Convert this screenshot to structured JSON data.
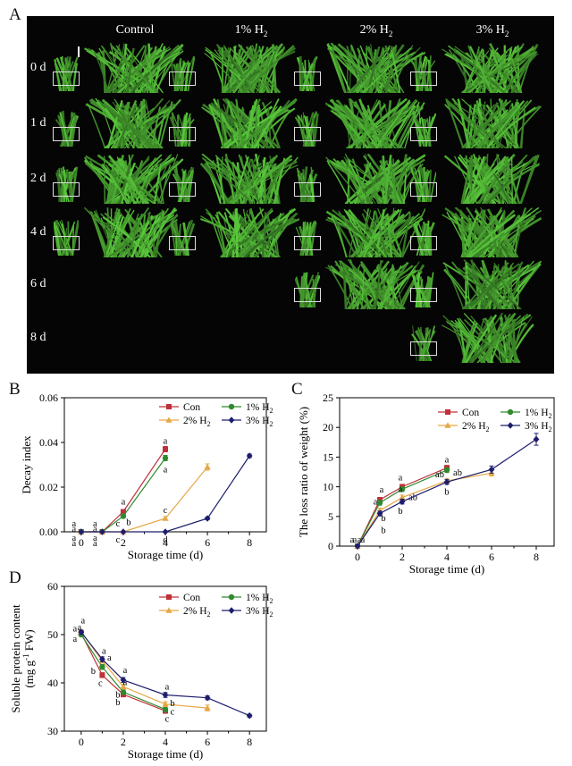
{
  "panels": {
    "a": {
      "letter": "A",
      "columns": [
        "Control",
        "1% H",
        "2% H",
        "3% H"
      ],
      "columns_sub": [
        "",
        "2",
        "2",
        "2"
      ],
      "rows": [
        "0 d",
        "1 d",
        "2 d",
        "4 d",
        "6 d",
        "8 d"
      ],
      "availability": [
        [
          1,
          1,
          1,
          1
        ],
        [
          1,
          1,
          1,
          1
        ],
        [
          1,
          1,
          1,
          1
        ],
        [
          1,
          1,
          1,
          1
        ],
        [
          0,
          0,
          1,
          1
        ],
        [
          0,
          0,
          0,
          1
        ]
      ]
    },
    "b": {
      "letter": "B"
    },
    "c": {
      "letter": "C"
    },
    "d": {
      "letter": "D"
    }
  },
  "legend_labels": [
    {
      "main": "Con",
      "sub": ""
    },
    {
      "main": "1% H",
      "sub": "2"
    },
    {
      "main": "2% H",
      "sub": "2"
    },
    {
      "main": "3% H",
      "sub": "2"
    }
  ],
  "colors": {
    "con": "#c0303a",
    "h1": "#2f8a2f",
    "h2": "#e6a744",
    "h3": "#1d1d6e"
  },
  "chart_data": [
    {
      "id": "b",
      "type": "line",
      "xlabel": "Storage time (d)",
      "ylabel": "Decay index",
      "xlim": [
        -0.8,
        8.8
      ],
      "ylim": [
        0,
        0.06
      ],
      "xticks": [
        0,
        2,
        4,
        6,
        8
      ],
      "yticks": [
        0.0,
        0.02,
        0.04,
        0.06
      ],
      "ytick_labels": [
        "0.00",
        "0.02",
        "0.04",
        "0.06"
      ],
      "series": [
        {
          "name": "Con",
          "x": [
            0,
            1,
            2,
            4
          ],
          "y": [
            0,
            0,
            0.009,
            0.037
          ],
          "err": [
            0,
            0,
            0.0008,
            0.0012
          ],
          "labels": [
            "a",
            "a",
            "a",
            "a"
          ]
        },
        {
          "name": "1% H2",
          "x": [
            0,
            1,
            2,
            4
          ],
          "y": [
            0,
            0,
            0.007,
            0.033
          ],
          "err": [
            0,
            0,
            0.0008,
            0.0012
          ],
          "labels": [
            "a",
            "a",
            "b",
            "a"
          ]
        },
        {
          "name": "2% H2",
          "x": [
            0,
            1,
            2,
            4,
            6
          ],
          "y": [
            0,
            0,
            0,
            0.006,
            0.029
          ],
          "err": [
            0,
            0,
            0,
            0.0008,
            0.0014
          ],
          "labels": [
            "a",
            "a",
            "c",
            "c",
            ""
          ]
        },
        {
          "name": "3% H2",
          "x": [
            0,
            1,
            2,
            4,
            6,
            8
          ],
          "y": [
            0,
            0,
            0,
            0,
            0.006,
            0.034
          ],
          "err": [
            0,
            0,
            0,
            0,
            0.0006,
            0.0008
          ],
          "labels": [
            "a",
            "a",
            "c",
            "d",
            "",
            ""
          ]
        }
      ]
    },
    {
      "id": "c",
      "type": "line",
      "xlabel": "Storage time (d)",
      "ylabel": "The loss ratio of weight (%)",
      "xlim": [
        -0.8,
        8.8
      ],
      "ylim": [
        0,
        25
      ],
      "xticks": [
        0,
        2,
        4,
        6,
        8
      ],
      "yticks": [
        0,
        5,
        10,
        15,
        20,
        25
      ],
      "ytick_labels": [
        "0",
        "5",
        "10",
        "15",
        "20",
        "25"
      ],
      "series": [
        {
          "name": "Con",
          "x": [
            0,
            1,
            2,
            4
          ],
          "y": [
            0,
            7.8,
            10.0,
            13.2
          ],
          "err": [
            0,
            0.4,
            0.4,
            0.4
          ],
          "labels": [
            "a",
            "a",
            "a",
            "a"
          ]
        },
        {
          "name": "1% H2",
          "x": [
            0,
            1,
            2,
            4
          ],
          "y": [
            0,
            7.3,
            9.6,
            12.8
          ],
          "err": [
            0,
            0.4,
            0.4,
            0.4
          ],
          "labels": [
            "a",
            "a",
            "a",
            "ab"
          ]
        },
        {
          "name": "2% H2",
          "x": [
            0,
            1,
            2,
            4,
            6
          ],
          "y": [
            0,
            6.0,
            8.2,
            11.0,
            12.3
          ],
          "err": [
            0,
            0.4,
            0.4,
            0.4,
            0.5
          ],
          "labels": [
            "a",
            "b",
            "ab",
            "ab",
            ""
          ]
        },
        {
          "name": "3% H2",
          "x": [
            0,
            1,
            2,
            4,
            6,
            8
          ],
          "y": [
            0,
            5.5,
            7.5,
            10.8,
            12.9,
            18.0
          ],
          "err": [
            0,
            0.4,
            0.4,
            0.4,
            0.6,
            1.0
          ],
          "labels": [
            "a",
            "b",
            "b",
            "b",
            "",
            ""
          ]
        }
      ]
    },
    {
      "id": "d",
      "type": "line",
      "xlabel": "Storage time (d)",
      "ylabel": "Soluble protein content",
      "ylabel2_main": "(mg g",
      "ylabel2_sup": "-1",
      "ylabel2_end": " FW)",
      "xlim": [
        -0.8,
        8.8
      ],
      "ylim": [
        30,
        60
      ],
      "xticks": [
        0,
        2,
        4,
        6,
        8
      ],
      "yticks": [
        30,
        40,
        50,
        60
      ],
      "ytick_labels": [
        "30",
        "40",
        "50",
        "60"
      ],
      "series": [
        {
          "name": "Con",
          "x": [
            0,
            1,
            2,
            4
          ],
          "y": [
            50.3,
            41.6,
            37.6,
            34.2
          ],
          "err": [
            0.4,
            0.5,
            0.5,
            0.5
          ],
          "labels": [
            "a",
            "c",
            "b",
            "c"
          ]
        },
        {
          "name": "1% H2",
          "x": [
            0,
            1,
            2,
            4
          ],
          "y": [
            50.0,
            43.3,
            38.1,
            34.5
          ],
          "err": [
            0.4,
            0.5,
            0.5,
            0.5
          ],
          "labels": [
            "a",
            "b",
            "b",
            "c"
          ]
        },
        {
          "name": "2% H2",
          "x": [
            0,
            1,
            2,
            4,
            6
          ],
          "y": [
            50.6,
            44.6,
            39.2,
            35.6,
            34.8
          ],
          "err": [
            0.4,
            0.5,
            0.5,
            0.5,
            0.6
          ],
          "labels": [
            "a",
            "a",
            "a",
            "b",
            ""
          ]
        },
        {
          "name": "3% H2",
          "x": [
            0,
            1,
            2,
            4,
            6,
            8
          ],
          "y": [
            50.5,
            44.9,
            40.6,
            37.5,
            36.9,
            33.2
          ],
          "err": [
            0.4,
            0.5,
            0.5,
            0.5,
            0.4,
            0.3
          ],
          "labels": [
            "a",
            "a",
            "a",
            "a",
            "",
            ""
          ]
        }
      ]
    }
  ]
}
